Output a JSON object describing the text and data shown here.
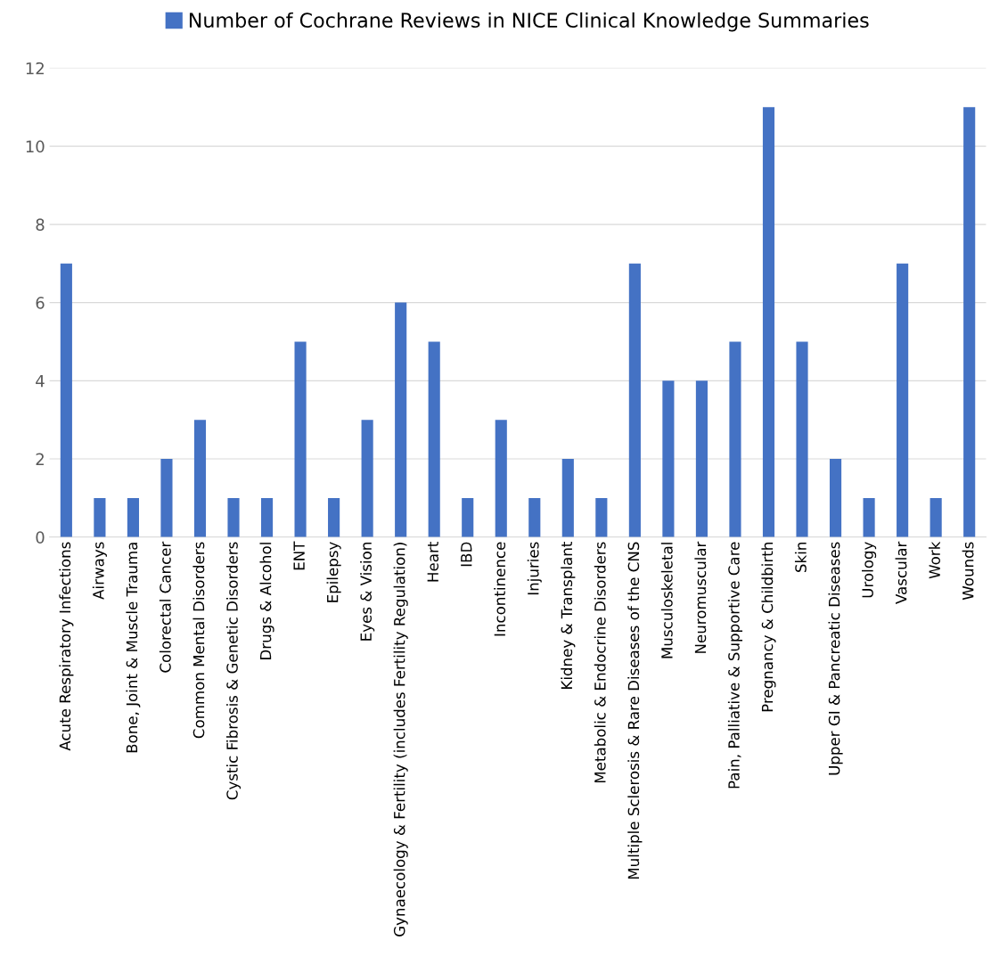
{
  "chart_data": {
    "type": "bar",
    "categories": [
      "Acute Respiratory Infections",
      "Airways",
      "Bone, Joint & Muscle Trauma",
      "Colorectal Cancer",
      "Common Mental Disorders",
      "Cystic Fibrosis & Genetic Disorders",
      "Drugs & Alcohol",
      "ENT",
      "Epilepsy",
      "Eyes & Vision",
      "Gynaecology & Fertility (includes Fertility Regulation)",
      "Heart",
      "IBD",
      "Incontinence",
      "Injuries",
      "Kidney & Transplant",
      "Metabolic & Endocrine Disorders",
      "Multiple Sclerosis & Rare Diseases of the CNS",
      "Musculoskeletal",
      "Neuromuscular",
      "Pain, Palliative & Supportive Care",
      "Pregnancy & Childbirth",
      "Skin",
      "Upper GI & Pancreatic Diseases",
      "Urology",
      "Vascular",
      "Work",
      "Wounds"
    ],
    "series": [
      {
        "name": "Number of Cochrane Reviews in NICE Clinical Knowledge Summaries",
        "color": "#4472c4",
        "values": [
          7,
          1,
          1,
          2,
          3,
          1,
          1,
          5,
          1,
          3,
          6,
          5,
          1,
          3,
          1,
          2,
          1,
          7,
          4,
          4,
          5,
          11,
          5,
          2,
          1,
          7,
          1,
          11
        ]
      }
    ],
    "ylim": [
      0,
      12
    ],
    "yticks": [
      0,
      2,
      4,
      6,
      8,
      10,
      12
    ],
    "grid": "y",
    "legend": "top"
  }
}
